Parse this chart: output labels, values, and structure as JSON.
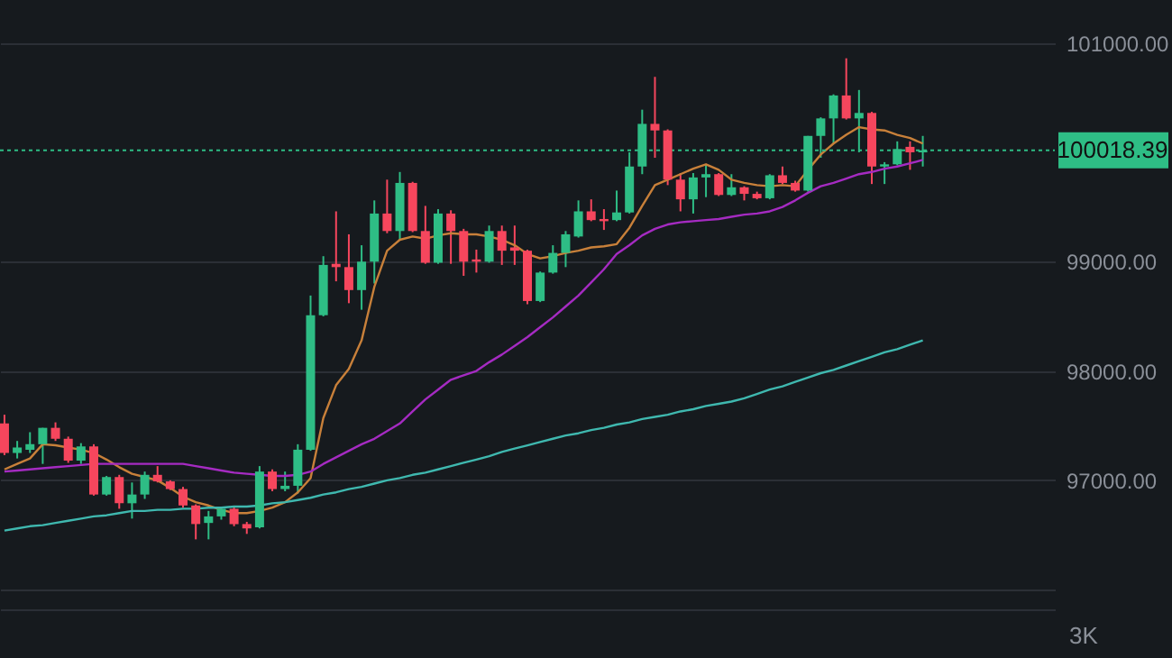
{
  "chart_data": {
    "type": "candlestick",
    "categories": [
      null,
      null,
      null,
      null,
      null,
      null,
      null,
      null,
      null,
      null,
      null,
      null,
      null,
      null,
      null,
      null,
      null,
      null,
      null,
      null,
      null,
      null,
      null,
      null,
      null,
      null,
      null,
      null,
      null,
      null,
      null,
      null,
      null,
      null,
      null,
      null,
      null,
      null,
      null,
      null,
      null,
      null,
      null,
      null,
      null,
      null,
      null,
      null,
      null,
      null,
      null,
      null,
      null,
      null,
      null,
      null,
      null,
      null,
      null,
      null,
      null,
      null,
      null,
      null,
      null,
      null,
      null,
      null,
      null,
      null,
      null,
      null,
      null
    ],
    "ohlc": [
      [
        97520,
        97600,
        97230,
        97250
      ],
      [
        97250,
        97360,
        97200,
        97300
      ],
      [
        97280,
        97440,
        97250,
        97330
      ],
      [
        97330,
        97480,
        97150,
        97480
      ],
      [
        97480,
        97530,
        97360,
        97380
      ],
      [
        97380,
        97400,
        97160,
        97180
      ],
      [
        97180,
        97340,
        97150,
        97310
      ],
      [
        97310,
        97330,
        96860,
        96870
      ],
      [
        96870,
        97040,
        96860,
        97030
      ],
      [
        97030,
        97050,
        96740,
        96790
      ],
      [
        96790,
        96980,
        96650,
        96870
      ],
      [
        96870,
        97080,
        96830,
        97050
      ],
      [
        97050,
        97130,
        96980,
        96990
      ],
      [
        96990,
        97000,
        96910,
        96920
      ],
      [
        96920,
        96940,
        96750,
        96770
      ],
      [
        96770,
        96780,
        96460,
        96600
      ],
      [
        96610,
        96720,
        96460,
        96670
      ],
      [
        96670,
        96760,
        96640,
        96740
      ],
      [
        96740,
        96760,
        96580,
        96600
      ],
      [
        96600,
        96620,
        96510,
        96560
      ],
      [
        96570,
        97130,
        96560,
        97080
      ],
      [
        97080,
        97100,
        96900,
        96920
      ],
      [
        96920,
        97080,
        96900,
        96950
      ],
      [
        96950,
        97330,
        96880,
        97280
      ],
      [
        97280,
        98690,
        97270,
        98510
      ],
      [
        98510,
        99050,
        98500,
        98970
      ],
      [
        98980,
        99460,
        98820,
        98950
      ],
      [
        98950,
        99250,
        98620,
        98740
      ],
      [
        98740,
        99150,
        98560,
        99000
      ],
      [
        99000,
        99560,
        98800,
        99440
      ],
      [
        99440,
        99750,
        99260,
        99280
      ],
      [
        99280,
        99820,
        99200,
        99720
      ],
      [
        99720,
        99730,
        99270,
        99280
      ],
      [
        99280,
        99510,
        98980,
        98990
      ],
      [
        98990,
        99480,
        98980,
        99440
      ],
      [
        99440,
        99470,
        98980,
        99280
      ],
      [
        99280,
        99300,
        98870,
        99000
      ],
      [
        99020,
        99110,
        98900,
        99000
      ],
      [
        99000,
        99330,
        98990,
        99280
      ],
      [
        99280,
        99330,
        98970,
        99100
      ],
      [
        99130,
        99330,
        98970,
        99100
      ],
      [
        99100,
        99110,
        98610,
        98640
      ],
      [
        98640,
        98910,
        98630,
        98900
      ],
      [
        98900,
        99150,
        98890,
        99080
      ],
      [
        99080,
        99280,
        98950,
        99250
      ],
      [
        99230,
        99560,
        99220,
        99460
      ],
      [
        99460,
        99570,
        99370,
        99380
      ],
      [
        99390,
        99480,
        99290,
        99370
      ],
      [
        99380,
        99650,
        99370,
        99450
      ],
      [
        99450,
        100000,
        99440,
        99870
      ],
      [
        99870,
        100390,
        99800,
        100260
      ],
      [
        100260,
        100690,
        99950,
        100200
      ],
      [
        100200,
        100210,
        99700,
        99750
      ],
      [
        99750,
        99810,
        99460,
        99570
      ],
      [
        99570,
        99810,
        99440,
        99770
      ],
      [
        99770,
        99890,
        99590,
        99800
      ],
      [
        99800,
        99810,
        99600,
        99610
      ],
      [
        99610,
        99800,
        99600,
        99680
      ],
      [
        99680,
        99690,
        99560,
        99620
      ],
      [
        99620,
        99640,
        99570,
        99580
      ],
      [
        99580,
        99800,
        99570,
        99790
      ],
      [
        99790,
        99870,
        99710,
        99720
      ],
      [
        99720,
        99740,
        99640,
        99650
      ],
      [
        99650,
        100150,
        99640,
        100150
      ],
      [
        100150,
        100320,
        99950,
        100310
      ],
      [
        100310,
        100530,
        100080,
        100520
      ],
      [
        100520,
        100860,
        100300,
        100310
      ],
      [
        100310,
        100570,
        100000,
        100360
      ],
      [
        100360,
        100370,
        99710,
        99870
      ],
      [
        99870,
        99910,
        99710,
        99890
      ],
      [
        99890,
        100100,
        99880,
        100030
      ],
      [
        100050,
        100100,
        99840,
        100000
      ],
      [
        100000,
        100150,
        99870,
        100018.39
      ]
    ],
    "colors": [
      "#f6465d",
      "#2ebd85",
      "#2ebd85",
      "#2ebd85",
      "#f6465d",
      "#f6465d",
      "#2ebd85",
      "#f6465d",
      "#2ebd85",
      "#f6465d",
      "#2ebd85",
      "#2ebd85",
      "#f6465d",
      "#f6465d",
      "#f6465d",
      "#f6465d",
      "#2ebd85",
      "#2ebd85",
      "#f6465d",
      "#f6465d",
      "#2ebd85",
      "#f6465d",
      "#2ebd85",
      "#2ebd85",
      "#2ebd85",
      "#2ebd85",
      "#f6465d",
      "#f6465d",
      "#2ebd85",
      "#2ebd85",
      "#f6465d",
      "#2ebd85",
      "#f6465d",
      "#f6465d",
      "#2ebd85",
      "#f6465d",
      "#f6465d",
      "#f6465d",
      "#2ebd85",
      "#f6465d",
      "#f6465d",
      "#f6465d",
      "#2ebd85",
      "#2ebd85",
      "#2ebd85",
      "#2ebd85",
      "#f6465d",
      "#f6465d",
      "#2ebd85",
      "#2ebd85",
      "#2ebd85",
      "#f6465d",
      "#f6465d",
      "#f6465d",
      "#2ebd85",
      "#2ebd85",
      "#f6465d",
      "#2ebd85",
      "#f6465d",
      "#f6465d",
      "#2ebd85",
      "#f6465d",
      "#f6465d",
      "#2ebd85",
      "#2ebd85",
      "#2ebd85",
      "#f6465d",
      "#2ebd85",
      "#f6465d",
      "#2ebd85",
      "#2ebd85",
      "#f6465d",
      "#2ebd85"
    ],
    "series": [
      {
        "type": "line",
        "color": "#c8803a",
        "values": [
          97100,
          97150,
          97200,
          97330,
          97320,
          97300,
          97280,
          97250,
          97190,
          97120,
          97060,
          97030,
          97000,
          96930,
          96850,
          96800,
          96770,
          96730,
          96700,
          96700,
          96720,
          96750,
          96800,
          96890,
          97020,
          97570,
          97870,
          98020,
          98280,
          98770,
          99100,
          99200,
          99230,
          99210,
          99240,
          99260,
          99250,
          99250,
          99230,
          99200,
          99150,
          99070,
          99030,
          99050,
          99080,
          99100,
          99130,
          99140,
          99160,
          99310,
          99510,
          99700,
          99750,
          99800,
          99850,
          99890,
          99840,
          99750,
          99720,
          99700,
          99690,
          99700,
          99690,
          99840,
          99980,
          100080,
          100160,
          100230,
          100210,
          100200,
          100160,
          100130,
          100080
        ]
      },
      {
        "type": "line",
        "color": "#a52bc2",
        "values": [
          97080,
          97090,
          97100,
          97110,
          97120,
          97130,
          97140,
          97150,
          97150,
          97150,
          97150,
          97150,
          97150,
          97150,
          97150,
          97130,
          97110,
          97090,
          97070,
          97060,
          97050,
          97040,
          97040,
          97050,
          97080,
          97150,
          97210,
          97270,
          97330,
          97380,
          97450,
          97520,
          97630,
          97740,
          97830,
          97920,
          97960,
          98000,
          98080,
          98150,
          98230,
          98310,
          98400,
          98490,
          98590,
          98690,
          98810,
          98930,
          99070,
          99150,
          99240,
          99300,
          99340,
          99360,
          99370,
          99380,
          99390,
          99410,
          99430,
          99440,
          99460,
          99500,
          99560,
          99630,
          99690,
          99720,
          99760,
          99800,
          99820,
          99850,
          99870,
          99900,
          99930
        ]
      },
      {
        "type": "line",
        "color": "#3fb8af",
        "values": [
          96540,
          96560,
          96580,
          96590,
          96610,
          96630,
          96650,
          96670,
          96680,
          96700,
          96720,
          96720,
          96730,
          96730,
          96740,
          96740,
          96750,
          96750,
          96760,
          96760,
          96770,
          96790,
          96800,
          96820,
          96840,
          96870,
          96890,
          96920,
          96940,
          96970,
          97000,
          97020,
          97050,
          97070,
          97100,
          97130,
          97160,
          97190,
          97220,
          97260,
          97290,
          97320,
          97350,
          97380,
          97410,
          97430,
          97460,
          97480,
          97510,
          97530,
          97560,
          97580,
          97600,
          97630,
          97650,
          97680,
          97700,
          97720,
          97750,
          97790,
          97830,
          97860,
          97900,
          97940,
          97980,
          98010,
          98050,
          98090,
          98130,
          98170,
          98200,
          98240,
          98280
        ]
      }
    ],
    "ylim": [
      95820,
      101393
    ],
    "yticks": [
      {
        "value": 96000,
        "label": null
      },
      {
        "value": 97000,
        "label": "97000.00"
      },
      {
        "value": 98000,
        "label": "98000.00"
      },
      {
        "value": 99000,
        "label": "99000.00"
      },
      {
        "value": 101000,
        "label": "101000.00"
      }
    ],
    "ref_lines": [
      {
        "axis": "y",
        "value": 100018.39,
        "label": "100018.39",
        "color": "#2ebd85",
        "line_style": "dotted"
      }
    ],
    "annotations": [
      "3K"
    ],
    "grid": "y",
    "tick_labels": "y"
  }
}
